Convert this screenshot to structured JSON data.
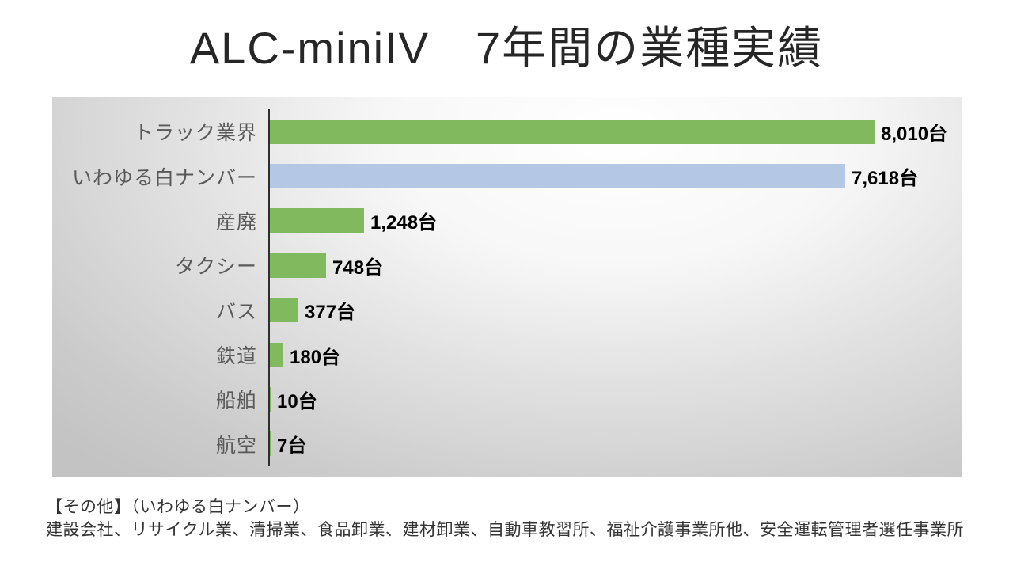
{
  "title": "ALC-miniIV　7年間の業種実績",
  "footnote": {
    "line1": "【その他】（いわゆる白ナンバー）",
    "line2": "建設会社、リサイクル業、清掃業、食品卸業、建材卸業、自動車教習所、福祉介護事業所他、安全運転管理者選任事業所"
  },
  "colors": {
    "bar_green": "#80B95E",
    "bar_blue": "#B4C8E6",
    "axis": "#2e2e2e",
    "category_label": "#595959",
    "value_label": "#000000"
  },
  "chart_data": {
    "type": "bar",
    "orientation": "horizontal",
    "title": "ALC-miniIV　7年間の業種実績",
    "categories": [
      "トラック業界",
      "いわゆる白ナンバー",
      "産廃",
      "タクシー",
      "バス",
      "鉄道",
      "船舶",
      "航空"
    ],
    "values": [
      8010,
      7618,
      1248,
      748,
      377,
      180,
      10,
      7
    ],
    "value_labels": [
      "8,010台",
      "7,618台",
      "1,248台",
      "748台",
      "377台",
      "180台",
      "10台",
      "7台"
    ],
    "bar_colors": [
      "#80B95E",
      "#B4C8E6",
      "#80B95E",
      "#80B95E",
      "#80B95E",
      "#80B95E",
      "#80B95E",
      "#80B95E"
    ],
    "unit": "台",
    "xlim": [
      0,
      9170
    ],
    "grid": false,
    "legend": false,
    "note": "いわゆる白ナンバー bar is highlighted in blue; all others green"
  }
}
